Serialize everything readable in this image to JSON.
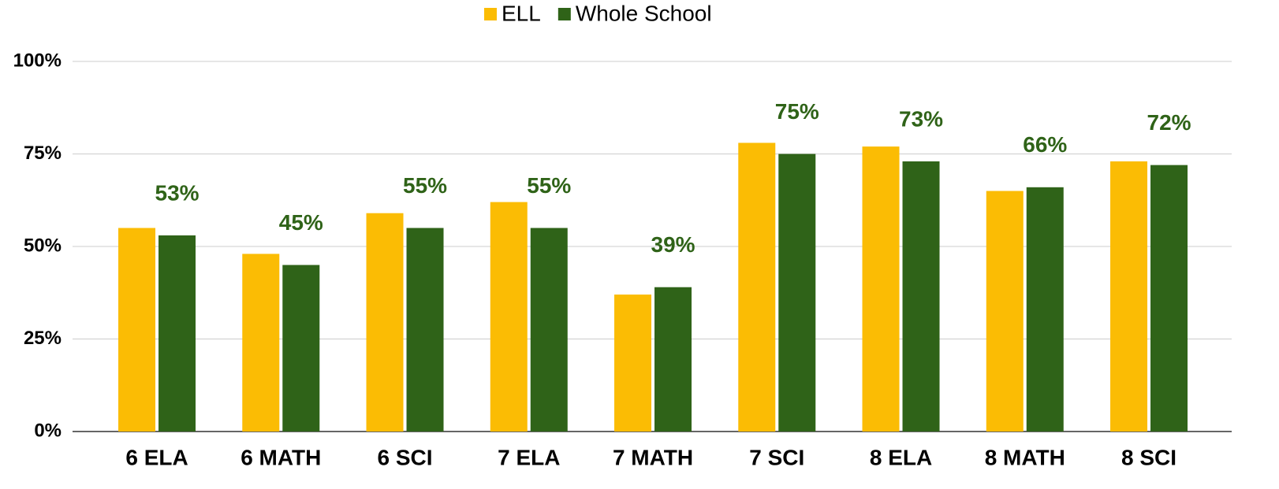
{
  "chart_data": {
    "type": "bar",
    "categories": [
      "6 ELA",
      "6 MATH",
      "6 SCI",
      "7 ELA",
      "7 MATH",
      "7 SCI",
      "8 ELA",
      "8 MATH",
      "8 SCI"
    ],
    "series": [
      {
        "name": "ELL",
        "color": "#fbbc04",
        "values": [
          55,
          48,
          59,
          62,
          37,
          78,
          77,
          65,
          73
        ]
      },
      {
        "name": "Whole School",
        "color": "#2f6318",
        "values": [
          53,
          45,
          55,
          55,
          39,
          75,
          73,
          66,
          72
        ],
        "value_labels": [
          "53%",
          "45%",
          "55%",
          "55%",
          "39%",
          "75%",
          "73%",
          "66%",
          "72%"
        ]
      }
    ],
    "ylim": [
      0,
      100
    ],
    "yticks": [
      {
        "value": 0,
        "label": "0%"
      },
      {
        "value": 25,
        "label": "25%"
      },
      {
        "value": 50,
        "label": "50%"
      },
      {
        "value": 75,
        "label": "75%"
      },
      {
        "value": 100,
        "label": "100%"
      }
    ],
    "grid": true,
    "legend": "top"
  }
}
